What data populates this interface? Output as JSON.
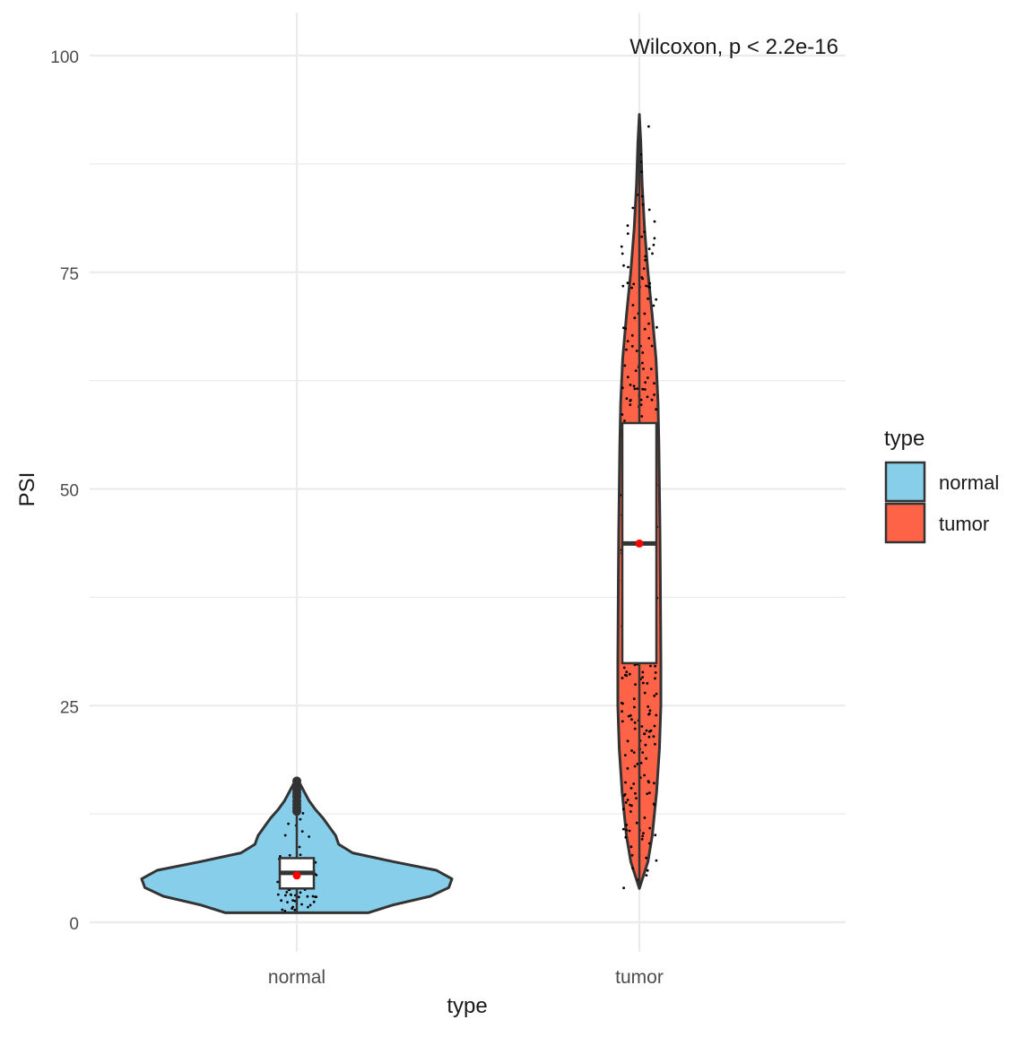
{
  "chart_data": {
    "type": "violin",
    "xlabel": "type",
    "ylabel": "PSI",
    "categories": [
      "normal",
      "tumor"
    ],
    "ylim": [
      -6,
      104
    ],
    "yticks": [
      0,
      25,
      50,
      75,
      100
    ],
    "grid": true,
    "annotation": "Wilcoxon, p < 2.2e-16",
    "legend": {
      "title": "type",
      "position": "right",
      "items": [
        {
          "label": "normal",
          "color": "#87CEEB"
        },
        {
          "label": "tumor",
          "color": "#FF6347"
        }
      ]
    },
    "colors": {
      "normal": "#87CEEB",
      "tumor": "#FF6347",
      "mean_point": "#FF0000",
      "outline": "#333333"
    },
    "series": [
      {
        "name": "normal",
        "box": {
          "min": 1.0,
          "q1": 3.9,
          "median": 5.7,
          "q3": 7.4,
          "max": 12.5
        },
        "mean": 5.4,
        "outliers": [
          12.8,
          13.2,
          13.6,
          14.0,
          14.5,
          14.9,
          15.3,
          15.8,
          16.3
        ],
        "density": [
          [
            1.1,
            0.46
          ],
          [
            2.0,
            0.62
          ],
          [
            3.0,
            0.86
          ],
          [
            4.0,
            0.98
          ],
          [
            5.0,
            1.0
          ],
          [
            6.0,
            0.9
          ],
          [
            7.0,
            0.62
          ],
          [
            8.0,
            0.36
          ],
          [
            9.0,
            0.27
          ],
          [
            10.0,
            0.25
          ],
          [
            11.0,
            0.21
          ],
          [
            12.0,
            0.17
          ],
          [
            13.0,
            0.12
          ],
          [
            14.0,
            0.08
          ],
          [
            15.0,
            0.05
          ],
          [
            16.0,
            0.02
          ],
          [
            16.5,
            0.0
          ]
        ]
      },
      {
        "name": "tumor",
        "box": {
          "min": 3.9,
          "q1": 29.9,
          "median": 43.7,
          "q3": 57.6,
          "max": 93.2
        },
        "mean": 43.7,
        "density": [
          [
            3.9,
            0.0
          ],
          [
            7.0,
            0.03
          ],
          [
            10.0,
            0.045
          ],
          [
            15.0,
            0.06
          ],
          [
            20.0,
            0.07
          ],
          [
            25.0,
            0.075
          ],
          [
            30.0,
            0.075
          ],
          [
            35.0,
            0.074
          ],
          [
            40.0,
            0.073
          ],
          [
            45.0,
            0.072
          ],
          [
            50.0,
            0.07
          ],
          [
            55.0,
            0.068
          ],
          [
            60.0,
            0.065
          ],
          [
            65.0,
            0.058
          ],
          [
            70.0,
            0.045
          ],
          [
            75.0,
            0.03
          ],
          [
            80.0,
            0.018
          ],
          [
            85.0,
            0.01
          ],
          [
            90.0,
            0.005
          ],
          [
            93.2,
            0.0
          ]
        ]
      }
    ]
  }
}
